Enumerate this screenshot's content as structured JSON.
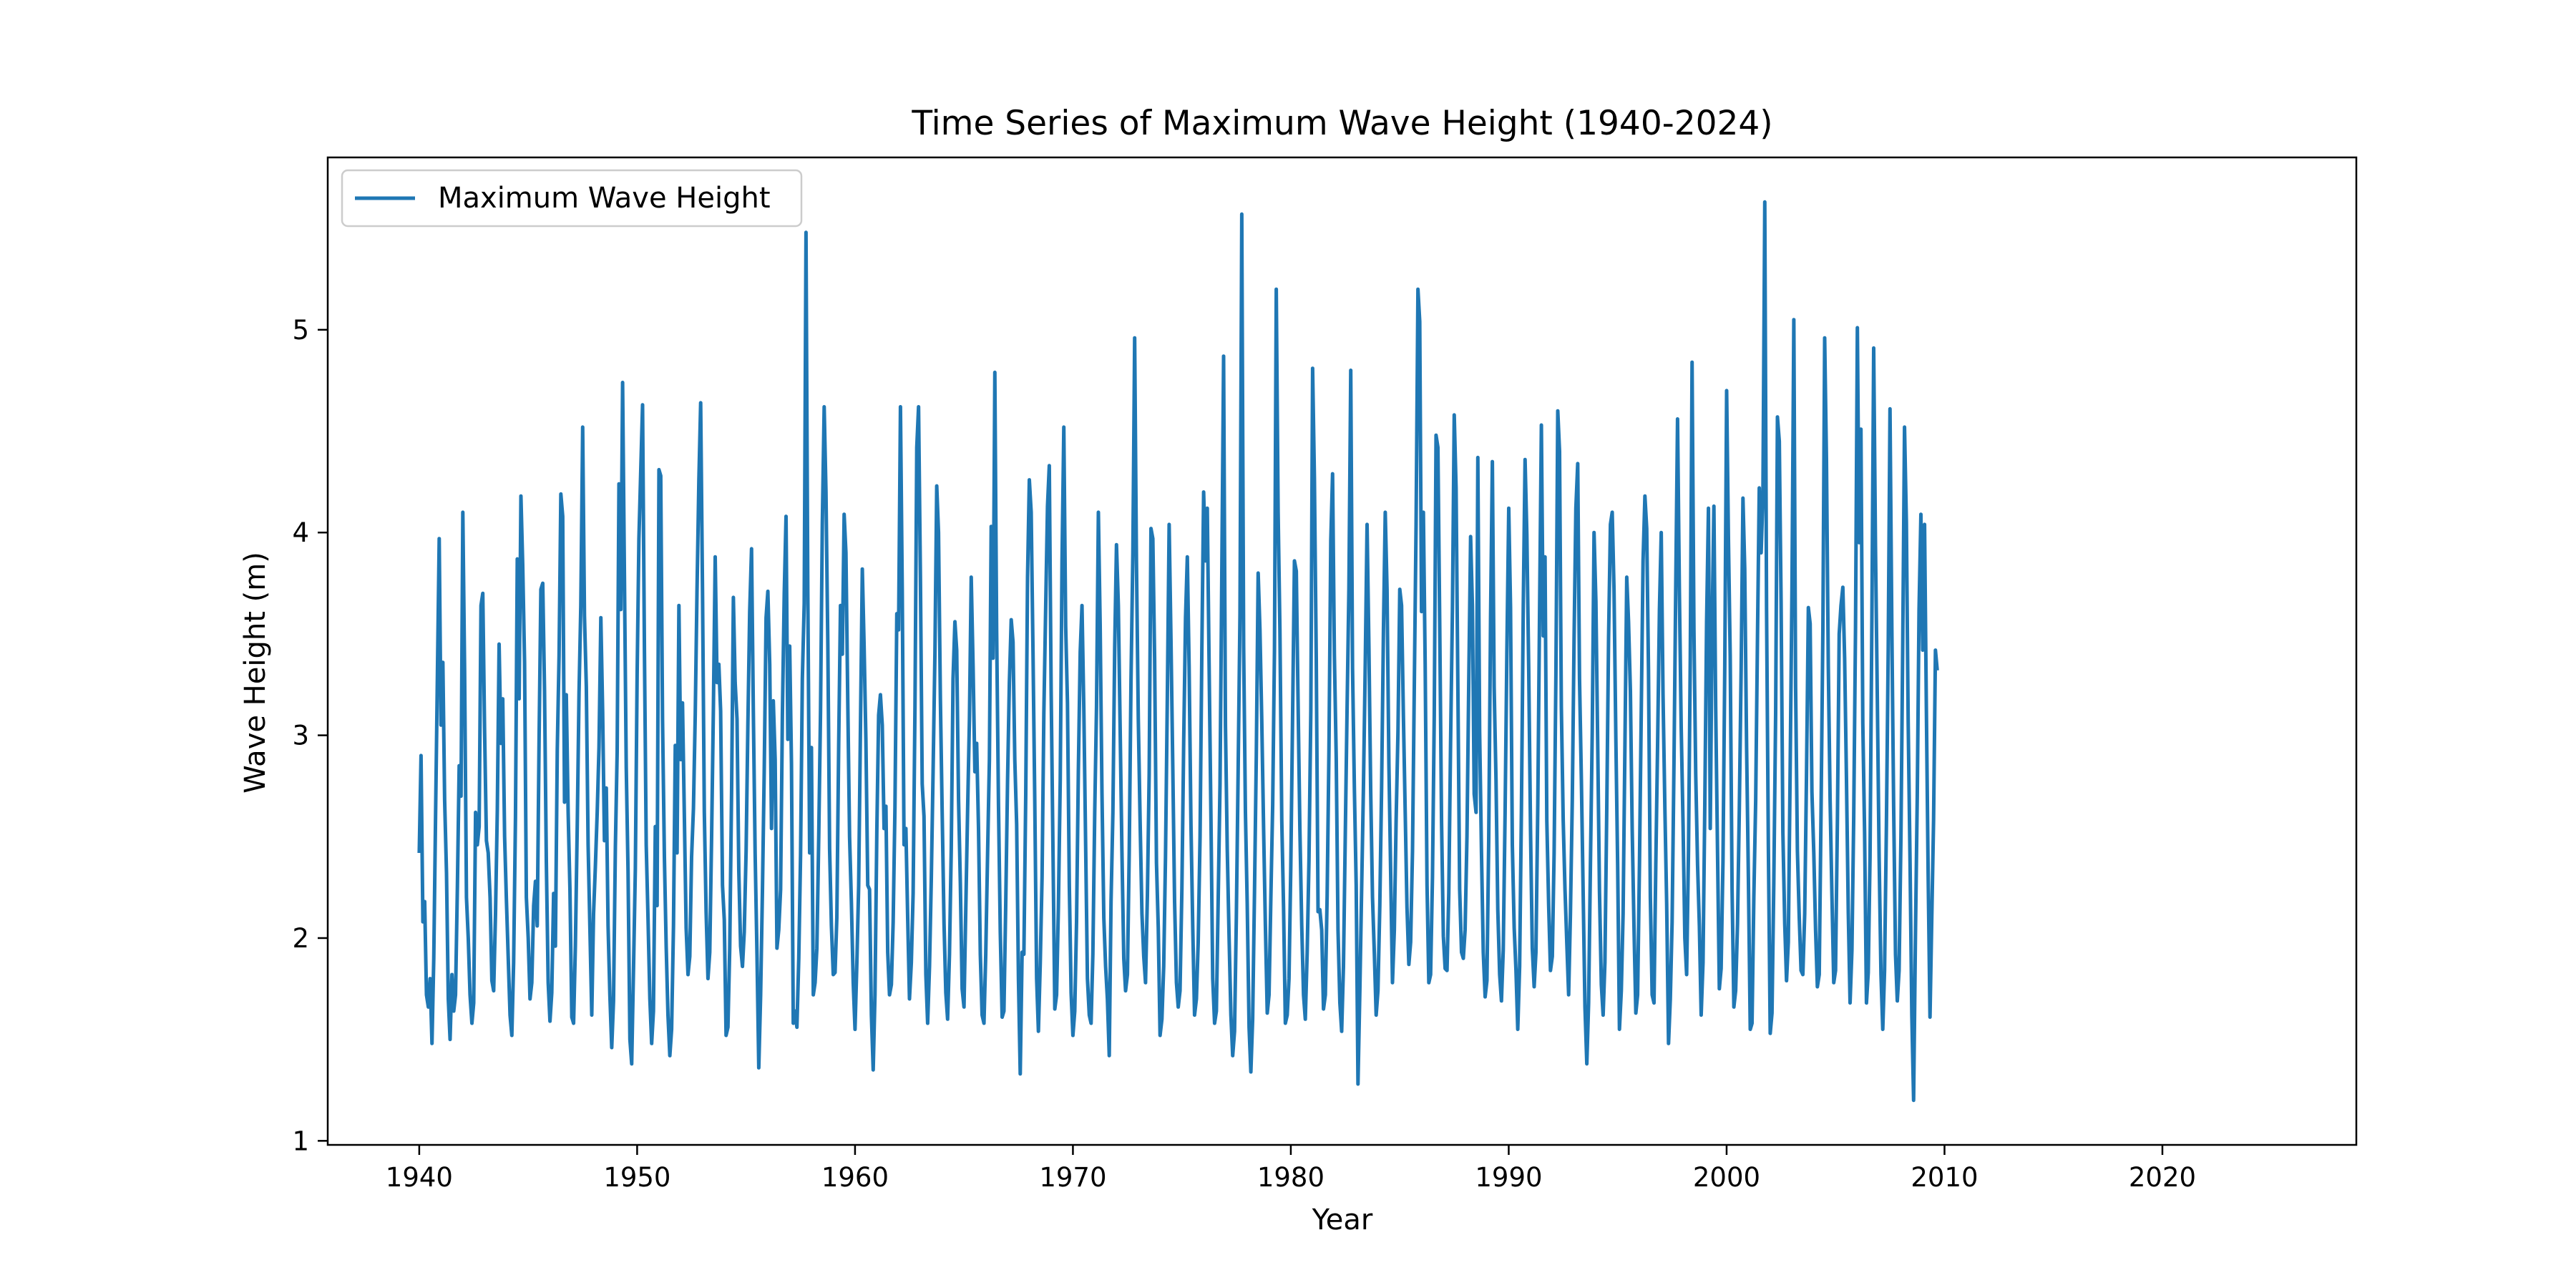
{
  "chart_data": {
    "type": "line",
    "title": "Time Series of Maximum Wave Height (1940-2024)",
    "xlabel": "Year",
    "ylabel": "Wave Height (m)",
    "xlim": [
      1935.8,
      2028.9
    ],
    "ylim": [
      0.98,
      5.85
    ],
    "x_ticks": [
      1940,
      1950,
      1960,
      1970,
      1980,
      1990,
      2000,
      2010,
      2020
    ],
    "x_tick_labels": [
      "1940",
      "1950",
      "1960",
      "1970",
      "1980",
      "1990",
      "2000",
      "2010",
      "2020"
    ],
    "y_ticks": [
      1,
      2,
      3,
      4,
      5
    ],
    "y_tick_labels": [
      "1",
      "2",
      "3",
      "4",
      "5"
    ],
    "grid": false,
    "legend": {
      "placement": "top-left"
    },
    "series": [
      {
        "name": "Maximum Wave Height",
        "color": "#1f77b4",
        "x_start": 1940.0,
        "x_step": 0.0833333,
        "values": [
          2.42,
          2.9,
          2.08,
          2.18,
          1.72,
          1.66,
          1.8,
          1.48,
          1.9,
          2.6,
          3.3,
          3.97,
          3.05,
          3.36,
          2.68,
          2.32,
          1.7,
          1.5,
          1.82,
          1.64,
          1.72,
          2.25,
          2.85,
          2.7,
          4.1,
          3.32,
          2.2,
          2.0,
          1.72,
          1.58,
          1.68,
          2.62,
          2.46,
          2.55,
          3.64,
          3.7,
          3.03,
          2.48,
          2.42,
          2.2,
          1.79,
          1.74,
          2.12,
          2.63,
          3.45,
          2.96,
          3.18,
          2.5,
          2.19,
          1.91,
          1.62,
          1.52,
          1.88,
          2.6,
          3.87,
          3.18,
          4.18,
          3.84,
          3.36,
          2.2,
          2.0,
          1.7,
          1.78,
          2.16,
          2.28,
          2.06,
          2.99,
          3.72,
          3.75,
          3.22,
          2.38,
          1.78,
          1.59,
          1.73,
          2.22,
          1.96,
          2.93,
          3.39,
          4.19,
          4.08,
          2.67,
          3.2,
          2.62,
          2.24,
          1.61,
          1.58,
          1.96,
          2.55,
          3.21,
          3.64,
          4.52,
          3.59,
          3.24,
          2.46,
          2.05,
          1.62,
          2.12,
          2.35,
          2.62,
          2.94,
          3.58,
          3.12,
          2.48,
          2.74,
          2.06,
          1.72,
          1.46,
          1.69,
          2.45,
          2.92,
          4.24,
          3.62,
          4.74,
          3.8,
          2.84,
          2.33,
          1.5,
          1.38,
          1.84,
          2.34,
          3.3,
          3.97,
          4.31,
          4.63,
          3.42,
          2.46,
          2.1,
          1.7,
          1.48,
          1.64,
          2.55,
          2.16,
          4.31,
          4.28,
          3.08,
          2.4,
          1.96,
          1.62,
          1.42,
          1.55,
          2.06,
          2.95,
          2.42,
          3.64,
          2.88,
          3.16,
          2.6,
          2.05,
          1.82,
          1.91,
          2.4,
          2.64,
          3.1,
          3.72,
          4.26,
          4.64,
          3.7,
          2.62,
          2.13,
          1.8,
          1.93,
          2.48,
          3.14,
          3.88,
          3.26,
          3.35,
          3.12,
          2.26,
          2.09,
          1.52,
          1.56,
          1.95,
          2.72,
          3.68,
          3.26,
          3.08,
          2.33,
          1.96,
          1.86,
          2.03,
          2.43,
          3.06,
          3.61,
          3.92,
          3.12,
          2.42,
          1.92,
          1.36,
          1.72,
          2.23,
          2.82,
          3.58,
          3.71,
          3.35,
          2.54,
          3.17,
          2.88,
          1.95,
          2.04,
          2.24,
          3.1,
          3.7,
          4.08,
          2.98,
          3.44,
          2.86,
          1.58,
          1.64,
          1.56,
          1.9,
          2.41,
          3.28,
          3.65,
          5.48,
          3.72,
          2.42,
          2.94,
          1.72,
          1.78,
          1.95,
          2.5,
          3.12,
          4.04,
          4.62,
          4.2,
          3.45,
          2.44,
          2.06,
          1.82,
          1.83,
          2.1,
          2.96,
          3.64,
          3.4,
          4.09,
          3.9,
          3.16,
          2.5,
          2.18,
          1.78,
          1.55,
          1.88,
          2.26,
          3.04,
          3.82,
          3.44,
          2.98,
          2.26,
          2.24,
          1.62,
          1.35,
          1.72,
          2.53,
          3.1,
          3.2,
          3.05,
          2.54,
          2.65,
          1.93,
          1.72,
          1.77,
          2.08,
          2.64,
          3.6,
          3.52,
          4.62,
          3.72,
          2.46,
          2.54,
          2.1,
          1.7,
          1.88,
          2.22,
          3.14,
          4.42,
          4.62,
          3.78,
          2.76,
          2.6,
          1.82,
          1.58,
          1.86,
          2.29,
          2.82,
          3.41,
          4.23,
          4.0,
          3.18,
          2.62,
          2.07,
          1.73,
          1.6,
          1.92,
          2.44,
          3.28,
          3.56,
          3.42,
          2.68,
          2.27,
          1.75,
          1.66,
          2.14,
          2.62,
          3.08,
          3.78,
          3.34,
          2.82,
          2.96,
          2.54,
          1.92,
          1.62,
          1.58,
          1.92,
          2.42,
          2.88,
          4.03,
          3.38,
          4.79,
          3.52,
          2.66,
          2.03,
          1.61,
          1.64,
          2.16,
          2.78,
          3.26,
          3.57,
          3.46,
          2.88,
          2.56,
          1.8,
          1.33,
          1.93,
          1.92,
          2.71,
          3.78,
          4.26,
          4.1,
          3.42,
          2.68,
          1.8,
          1.54,
          1.88,
          2.3,
          3.11,
          3.64,
          4.13,
          4.33,
          3.22,
          2.45,
          1.65,
          1.72,
          2.15,
          2.78,
          3.86,
          4.52,
          3.54,
          3.16,
          2.26,
          1.73,
          1.52,
          1.64,
          2.08,
          2.82,
          3.41,
          3.64,
          3.12,
          2.46,
          1.8,
          1.62,
          1.58,
          1.92,
          2.62,
          3.14,
          4.1,
          3.54,
          2.72,
          2.1,
          1.86,
          1.7,
          1.42,
          2.18,
          2.62,
          3.43,
          3.94,
          3.64,
          3.04,
          2.43,
          1.9,
          1.74,
          1.82,
          2.42,
          3.27,
          3.9,
          4.96,
          3.86,
          3.08,
          2.58,
          2.12,
          1.91,
          1.78,
          2.21,
          2.81,
          4.02,
          3.97,
          3.38,
          2.37,
          2.05,
          1.52,
          1.6,
          1.86,
          2.4,
          3.2,
          4.04,
          3.46,
          2.84,
          2.18,
          1.78,
          1.66,
          1.74,
          2.24,
          2.96,
          3.58,
          3.88,
          3.34,
          2.56,
          2.05,
          1.62,
          1.7,
          1.98,
          2.5,
          3.42,
          4.2,
          3.86,
          4.12,
          3.36,
          2.6,
          1.8,
          1.58,
          1.64,
          2.18,
          2.76,
          3.8,
          4.87,
          3.05,
          2.44,
          2.0,
          1.62,
          1.42,
          1.54,
          2.1,
          2.82,
          3.6,
          5.57,
          3.44,
          2.62,
          2.17,
          1.56,
          1.34,
          1.6,
          2.23,
          2.9,
          3.8,
          3.52,
          3.08,
          2.54,
          2.06,
          1.63,
          1.72,
          2.19,
          2.66,
          3.42,
          5.2,
          4.1,
          3.52,
          2.58,
          2.15,
          1.58,
          1.62,
          1.8,
          2.35,
          3.12,
          3.86,
          3.81,
          3.16,
          2.54,
          2.06,
          1.72,
          1.6,
          1.93,
          2.38,
          3.12,
          4.81,
          4.27,
          3.38,
          2.13,
          2.14,
          2.04,
          1.65,
          1.72,
          2.21,
          2.92,
          3.96,
          4.29,
          3.4,
          2.89,
          2.04,
          1.68,
          1.54,
          1.86,
          2.52,
          3.14,
          3.72,
          4.8,
          3.33,
          2.73,
          2.26,
          1.28,
          1.74,
          2.24,
          2.74,
          3.36,
          4.04,
          3.43,
          2.72,
          2.2,
          1.92,
          1.62,
          1.74,
          2.16,
          2.74,
          3.52,
          4.1,
          3.72,
          2.86,
          2.32,
          1.78,
          2.04,
          2.58,
          3.02,
          3.72,
          3.64,
          3.09,
          2.62,
          2.15,
          1.87,
          1.98,
          2.43,
          3.24,
          4.04,
          5.2,
          5.04,
          3.61,
          4.1,
          3.35,
          2.26,
          1.78,
          1.82,
          2.3,
          3.1,
          4.48,
          4.42,
          3.56,
          2.57,
          2.01,
          1.85,
          1.84,
          2.22,
          2.96,
          3.62,
          4.58,
          4.22,
          3.24,
          2.24,
          1.93,
          1.9,
          2.04,
          2.5,
          3.26,
          3.98,
          3.64,
          2.71,
          2.62,
          4.37,
          3.02,
          2.42,
          1.93,
          1.71,
          1.79,
          2.48,
          3.58,
          4.35,
          3.24,
          2.78,
          2.14,
          1.82,
          1.69,
          1.94,
          2.62,
          3.42,
          4.12,
          3.63,
          2.46,
          2.05,
          1.84,
          1.55,
          1.86,
          2.63,
          3.64,
          4.36,
          3.99,
          3.33,
          2.54,
          1.95,
          1.76,
          1.93,
          2.66,
          3.62,
          4.53,
          3.49,
          3.88,
          2.58,
          2.16,
          1.84,
          1.91,
          2.42,
          3.3,
          4.6,
          4.4,
          3.14,
          2.58,
          2.24,
          1.97,
          1.72,
          2.12,
          2.68,
          3.48,
          4.12,
          4.34,
          3.28,
          2.78,
          2.22,
          1.66,
          1.38,
          1.68,
          2.35,
          3.02,
          4.0,
          3.66,
          2.96,
          2.23,
          1.77,
          1.62,
          1.88,
          2.64,
          3.48,
          4.04,
          4.1,
          3.72,
          2.98,
          2.36,
          1.55,
          1.74,
          2.12,
          2.96,
          3.78,
          3.56,
          3.22,
          2.54,
          2.06,
          1.63,
          1.72,
          2.37,
          3.12,
          3.86,
          4.18,
          4.02,
          3.32,
          2.2,
          1.72,
          1.68,
          2.36,
          2.95,
          3.62,
          4.0,
          3.2,
          2.64,
          2.17,
          1.48,
          1.7,
          2.08,
          2.86,
          3.74,
          4.56,
          3.7,
          3.04,
          2.56,
          2.0,
          1.82,
          2.43,
          3.38,
          4.84,
          3.52,
          2.81,
          2.36,
          2.06,
          1.62,
          1.88,
          2.66,
          3.56,
          4.12,
          2.54,
          3.54,
          4.13,
          3.14,
          2.42,
          1.75,
          1.85,
          2.38,
          3.34,
          4.7,
          3.97,
          3.39,
          2.24,
          1.66,
          1.74,
          2.07,
          2.63,
          3.33,
          4.17,
          3.82,
          2.94,
          2.3,
          1.55,
          1.58,
          2.2,
          2.68,
          3.48,
          4.22,
          3.9,
          4.18,
          5.63,
          3.62,
          2.46,
          1.53,
          1.63,
          2.27,
          3.11,
          4.57,
          4.45,
          3.66,
          2.52,
          2.07,
          1.79,
          1.98,
          2.84,
          3.72,
          5.05,
          3.24,
          2.43,
          2.1,
          1.84,
          1.82,
          2.12,
          2.8,
          3.63,
          3.55,
          2.72,
          2.42,
          2.04,
          1.76,
          1.82,
          2.61,
          3.52,
          4.96,
          4.36,
          3.34,
          2.68,
          2.22,
          1.78,
          1.84,
          2.58,
          3.5,
          3.64,
          3.73,
          3.38,
          2.8,
          2.13,
          1.68,
          1.94,
          2.6,
          3.52,
          5.01,
          3.95,
          4.51,
          3.06,
          2.52,
          1.68,
          1.83,
          2.4,
          3.58,
          4.91,
          3.94,
          3.18,
          2.4,
          1.82,
          1.55,
          1.84,
          2.56,
          3.42,
          4.61,
          3.52,
          2.65,
          1.92,
          1.69,
          1.84,
          2.5,
          3.45,
          4.52,
          4.05,
          3.07,
          2.38,
          1.62,
          1.2,
          2.02,
          2.7,
          3.62,
          4.09,
          3.42,
          4.04,
          3.14,
          2.32,
          1.61,
          2.1,
          2.58,
          3.42,
          3.32
        ]
      }
    ]
  }
}
